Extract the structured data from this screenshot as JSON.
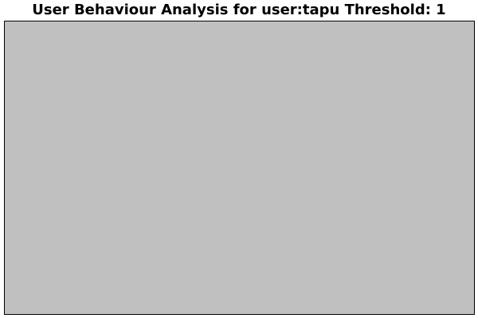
{
  "chart_data": {
    "type": "bar",
    "title": "User Behaviour Analysis for user:tapu Threshold: 1",
    "categories": [],
    "values": [],
    "xlabel": "",
    "ylabel": "",
    "grid": false,
    "legend": "none"
  },
  "colors": {
    "background": "#ffffff",
    "plot_background": "#c0c0c0",
    "border": "#000000",
    "title_text": "#000000"
  }
}
